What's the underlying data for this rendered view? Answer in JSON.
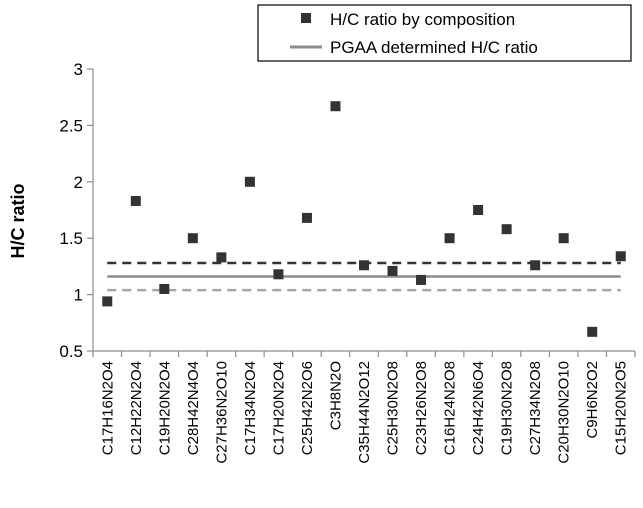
{
  "chart_data": {
    "type": "scatter",
    "ylabel": "H/C ratio",
    "ylim": [
      0.5,
      3
    ],
    "yticks": [
      "0.5",
      "1",
      "1.5",
      "2",
      "2.5",
      "3"
    ],
    "grid": false,
    "legend_position": "top-right",
    "categories": [
      "C17H16N2O4",
      "C12H22N2O4",
      "C19H20N2O4",
      "C28H42N4O4",
      "C27H36N2O10",
      "C17H34N2O4",
      "C17H20N2O4",
      "C25H42N2O6",
      "C3H8N2O",
      "C35H44N2O12",
      "C25H30N2O8",
      "C23H26N2O8",
      "C16H24N2O8",
      "C24H42N6O4",
      "C19H30N2O8",
      "C27H34N2O8",
      "C20H30N2O10",
      "C9H6N2O2",
      "C15H20N2O5"
    ],
    "series": [
      {
        "name": "H/C ratio by composition",
        "type": "scatter",
        "color": "#333333",
        "values": [
          0.94,
          1.83,
          1.05,
          1.5,
          1.33,
          2.0,
          1.18,
          1.68,
          2.67,
          1.26,
          1.21,
          1.13,
          1.5,
          1.75,
          1.58,
          1.26,
          1.5,
          0.67,
          1.34
        ]
      },
      {
        "name": "PGAA determined H/C ratio",
        "type": "hline",
        "color": "#8c8c8c",
        "value": 1.16
      }
    ],
    "reference_lines": [
      {
        "value": 1.28,
        "style": "dashed",
        "color": "#333333"
      },
      {
        "value": 1.04,
        "style": "dashed",
        "color": "#a6a6a6"
      }
    ]
  }
}
